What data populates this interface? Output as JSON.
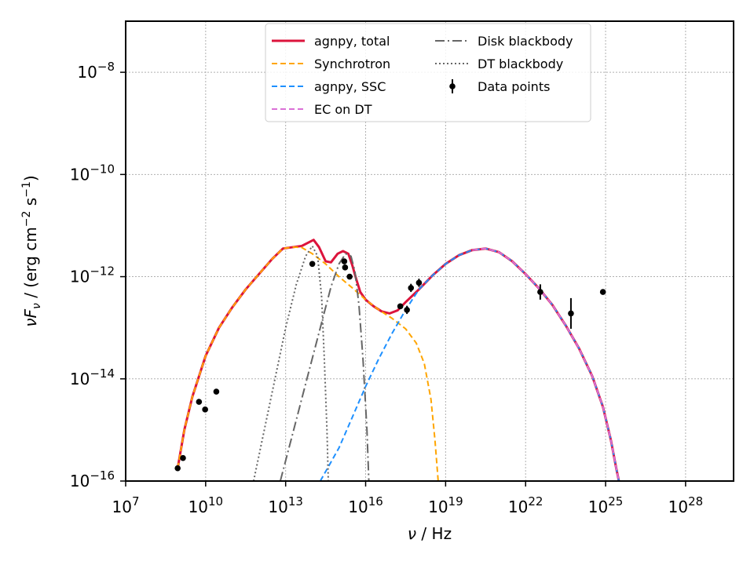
{
  "chart_data": {
    "type": "line",
    "xlabel": "ν / Hz",
    "ylabel": "νF_ν / (erg cm^-2 s^-1)",
    "xscale": "log",
    "yscale": "log",
    "xlim_exp": [
      7,
      29.8
    ],
    "ylim_exp": [
      -16,
      -7.0
    ],
    "x_ticks": [
      {
        "exp": 7,
        "label": "10^7"
      },
      {
        "exp": 10,
        "label": "10^10"
      },
      {
        "exp": 13,
        "label": "10^13"
      },
      {
        "exp": 16,
        "label": "10^16"
      },
      {
        "exp": 19,
        "label": "10^19"
      },
      {
        "exp": 22,
        "label": "10^22"
      },
      {
        "exp": 25,
        "label": "10^25"
      },
      {
        "exp": 28,
        "label": "10^28"
      }
    ],
    "y_ticks": [
      {
        "exp": -16,
        "label": "10^-16"
      },
      {
        "exp": -14,
        "label": "10^-14"
      },
      {
        "exp": -12,
        "label": "10^-12"
      },
      {
        "exp": -10,
        "label": "10^-10"
      },
      {
        "exp": -8,
        "label": "10^-8"
      }
    ],
    "grid": true,
    "legend_position": "top-center",
    "legend_columns": 2,
    "series": [
      {
        "name": "agnpy, total",
        "color": "#dc143c",
        "style": "solid",
        "points": [
          [
            8.95,
            -15.75
          ],
          [
            9.2,
            -15.0
          ],
          [
            9.5,
            -14.35
          ],
          [
            10.0,
            -13.55
          ],
          [
            10.5,
            -13.0
          ],
          [
            11.0,
            -12.6
          ],
          [
            11.5,
            -12.25
          ],
          [
            12.0,
            -11.95
          ],
          [
            12.5,
            -11.65
          ],
          [
            12.9,
            -11.45
          ],
          [
            13.3,
            -11.42
          ],
          [
            13.6,
            -11.4
          ],
          [
            13.9,
            -11.32
          ],
          [
            14.05,
            -11.28
          ],
          [
            14.25,
            -11.42
          ],
          [
            14.5,
            -11.7
          ],
          [
            14.7,
            -11.72
          ],
          [
            14.95,
            -11.55
          ],
          [
            15.15,
            -11.5
          ],
          [
            15.35,
            -11.55
          ],
          [
            15.5,
            -11.78
          ],
          [
            15.65,
            -12.05
          ],
          [
            15.8,
            -12.3
          ],
          [
            16.0,
            -12.45
          ],
          [
            16.3,
            -12.58
          ],
          [
            16.6,
            -12.68
          ],
          [
            16.9,
            -12.72
          ],
          [
            17.2,
            -12.66
          ],
          [
            17.5,
            -12.5
          ],
          [
            18.0,
            -12.25
          ],
          [
            18.5,
            -11.98
          ],
          [
            19.0,
            -11.75
          ],
          [
            19.5,
            -11.58
          ],
          [
            20.0,
            -11.48
          ],
          [
            20.5,
            -11.45
          ],
          [
            21.0,
            -11.52
          ],
          [
            21.5,
            -11.7
          ],
          [
            22.0,
            -11.95
          ],
          [
            22.5,
            -12.23
          ],
          [
            23.0,
            -12.55
          ],
          [
            23.5,
            -12.95
          ],
          [
            24.0,
            -13.4
          ],
          [
            24.5,
            -13.95
          ],
          [
            24.9,
            -14.55
          ],
          [
            25.2,
            -15.2
          ],
          [
            25.4,
            -15.75
          ],
          [
            25.5,
            -16.0
          ]
        ]
      },
      {
        "name": "Synchrotron",
        "color": "#ffa500",
        "style": "dashed",
        "points": [
          [
            8.95,
            -15.75
          ],
          [
            9.2,
            -15.0
          ],
          [
            9.5,
            -14.35
          ],
          [
            10.0,
            -13.55
          ],
          [
            10.5,
            -13.0
          ],
          [
            11.0,
            -12.6
          ],
          [
            11.5,
            -12.25
          ],
          [
            12.0,
            -11.95
          ],
          [
            12.5,
            -11.65
          ],
          [
            12.9,
            -11.45
          ],
          [
            13.3,
            -11.42
          ],
          [
            13.6,
            -11.43
          ],
          [
            14.0,
            -11.55
          ],
          [
            14.5,
            -11.75
          ],
          [
            15.0,
            -12.0
          ],
          [
            15.5,
            -12.22
          ],
          [
            16.0,
            -12.45
          ],
          [
            16.5,
            -12.65
          ],
          [
            17.0,
            -12.82
          ],
          [
            17.5,
            -13.02
          ],
          [
            17.9,
            -13.3
          ],
          [
            18.2,
            -13.7
          ],
          [
            18.45,
            -14.4
          ],
          [
            18.6,
            -15.2
          ],
          [
            18.72,
            -16.0
          ]
        ]
      },
      {
        "name": "agnpy, SSC",
        "color": "#1e90ff",
        "style": "dashed",
        "points": [
          [
            14.3,
            -16.0
          ],
          [
            15.0,
            -15.35
          ],
          [
            15.5,
            -14.75
          ],
          [
            16.0,
            -14.15
          ],
          [
            16.5,
            -13.6
          ],
          [
            17.0,
            -13.1
          ],
          [
            17.5,
            -12.65
          ],
          [
            18.0,
            -12.25
          ],
          [
            18.5,
            -11.98
          ],
          [
            19.0,
            -11.75
          ],
          [
            19.5,
            -11.58
          ],
          [
            20.0,
            -11.48
          ],
          [
            20.5,
            -11.45
          ],
          [
            21.0,
            -11.52
          ],
          [
            21.5,
            -11.7
          ],
          [
            22.0,
            -11.95
          ],
          [
            22.5,
            -12.23
          ],
          [
            23.0,
            -12.55
          ],
          [
            23.5,
            -12.95
          ],
          [
            24.0,
            -13.4
          ],
          [
            24.5,
            -13.95
          ],
          [
            24.9,
            -14.55
          ],
          [
            25.2,
            -15.2
          ],
          [
            25.4,
            -15.75
          ],
          [
            25.5,
            -16.0
          ]
        ]
      },
      {
        "name": "EC on DT",
        "color": "#da70d6",
        "style": "dashed",
        "points": [
          [
            20.0,
            -11.48
          ],
          [
            20.5,
            -11.45
          ],
          [
            21.0,
            -11.52
          ],
          [
            21.5,
            -11.7
          ],
          [
            22.0,
            -11.95
          ],
          [
            22.5,
            -12.23
          ],
          [
            23.0,
            -12.55
          ],
          [
            23.5,
            -12.95
          ],
          [
            24.0,
            -13.4
          ],
          [
            24.5,
            -13.95
          ],
          [
            24.9,
            -14.55
          ],
          [
            25.2,
            -15.2
          ],
          [
            25.4,
            -15.75
          ],
          [
            25.5,
            -16.0
          ]
        ]
      },
      {
        "name": "Disk blackbody",
        "color": "#666666",
        "style": "dashdot",
        "points": [
          [
            12.8,
            -16.0
          ],
          [
            13.3,
            -15.0
          ],
          [
            13.8,
            -14.0
          ],
          [
            14.3,
            -13.0
          ],
          [
            14.7,
            -12.2
          ],
          [
            15.0,
            -11.75
          ],
          [
            15.25,
            -11.55
          ],
          [
            15.45,
            -11.6
          ],
          [
            15.6,
            -11.9
          ],
          [
            15.75,
            -12.55
          ],
          [
            15.9,
            -13.6
          ],
          [
            16.05,
            -15.0
          ],
          [
            16.12,
            -16.0
          ]
        ]
      },
      {
        "name": "DT blackbody",
        "color": "#666666",
        "style": "dotted",
        "points": [
          [
            11.8,
            -16.0
          ],
          [
            12.2,
            -15.0
          ],
          [
            12.6,
            -14.0
          ],
          [
            13.0,
            -13.0
          ],
          [
            13.4,
            -12.15
          ],
          [
            13.75,
            -11.6
          ],
          [
            14.0,
            -11.4
          ],
          [
            14.2,
            -11.6
          ],
          [
            14.35,
            -12.4
          ],
          [
            14.45,
            -13.6
          ],
          [
            14.55,
            -15.0
          ],
          [
            14.6,
            -16.0
          ]
        ]
      }
    ],
    "data_points_label": "Data points",
    "data_points": [
      {
        "x": 8.95,
        "y": -15.75,
        "yerr": 0
      },
      {
        "x": 9.15,
        "y": -15.55,
        "yerr": 0
      },
      {
        "x": 9.75,
        "y": -14.45,
        "yerr": 0
      },
      {
        "x": 9.98,
        "y": -14.6,
        "yerr": 0
      },
      {
        "x": 10.4,
        "y": -14.25,
        "yerr": 0
      },
      {
        "x": 14.0,
        "y": -11.75,
        "yerr": 0
      },
      {
        "x": 15.2,
        "y": -11.7,
        "yerr": 0
      },
      {
        "x": 15.23,
        "y": -11.82,
        "yerr": 0
      },
      {
        "x": 15.4,
        "y": -12.0,
        "yerr": 0
      },
      {
        "x": 17.3,
        "y": -12.58,
        "yerr": 0.05
      },
      {
        "x": 17.55,
        "y": -12.65,
        "yerr": 0.08
      },
      {
        "x": 17.7,
        "y": -12.22,
        "yerr": 0.08
      },
      {
        "x": 18.0,
        "y": -12.12,
        "yerr": 0.08
      },
      {
        "x": 22.55,
        "y": -12.3,
        "yerr": 0.15
      },
      {
        "x": 23.7,
        "y": -12.72,
        "yerr": 0.3
      },
      {
        "x": 24.9,
        "y": -12.3,
        "yerr": 0
      }
    ]
  }
}
